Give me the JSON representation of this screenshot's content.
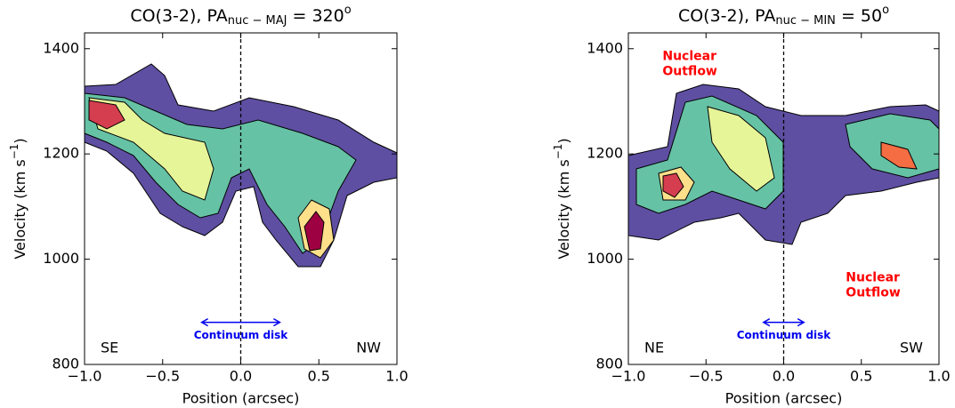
{
  "chart_data": [
    {
      "type": "pv-diagram",
      "title": "CO(3-2), PA",
      "title_sub": "nuc − MAJ",
      "title_eq": " = 320",
      "title_sup": "o",
      "x_label": "Position (arcsec)",
      "y_label": "Velocity (km s",
      "y_label_sup": "−1",
      "y_label_end": ")",
      "xlim": [
        -1,
        1
      ],
      "ylim": [
        800,
        1430
      ],
      "xticks": [
        {
          "value": -1,
          "label": "−1.0"
        },
        {
          "value": -0.5,
          "label": "−0.5"
        },
        {
          "value": 0,
          "label": "0.0"
        },
        0.5,
        {
          "value": 1,
          "label": "1.0"
        }
      ],
      "yticks": [
        800,
        1000,
        1200,
        1400
      ],
      "vline": 0,
      "corner_left": "SE",
      "corner_right": "NW",
      "disk": {
        "label": "Continuum disk",
        "x": [
          -0.25,
          0.25
        ],
        "y": 880
      }
    },
    {
      "type": "pv-diagram",
      "title": "CO(3-2), PA",
      "title_sub": "nuc − MIN",
      "title_eq": " = 50",
      "title_sup": "o",
      "x_label": "Position (arcsec)",
      "y_label": "Velocity (km s",
      "y_label_sup": "−1",
      "y_label_end": ")",
      "xlim": [
        -1,
        1
      ],
      "ylim": [
        800,
        1430
      ],
      "xticks": [
        {
          "value": -1,
          "label": "−1.0"
        },
        {
          "value": -0.5,
          "label": "−0.5"
        },
        {
          "value": 0,
          "label": "0.0"
        },
        0.5,
        {
          "value": 1,
          "label": "1.0"
        }
      ],
      "yticks": [
        800,
        1000,
        1200,
        1400
      ],
      "vline": 0,
      "corner_left": "NE",
      "corner_right": "SW",
      "disk": {
        "label": "Continuum disk",
        "x": [
          -0.13,
          0.13
        ],
        "y": 880
      },
      "outflows": [
        {
          "lines": [
            "Nuclear",
            "Outflow"
          ],
          "x": -0.78,
          "y": 1385
        },
        {
          "lines": [
            "Nuclear",
            "Outflow"
          ],
          "x": 0.4,
          "y": 965
        }
      ]
    }
  ]
}
